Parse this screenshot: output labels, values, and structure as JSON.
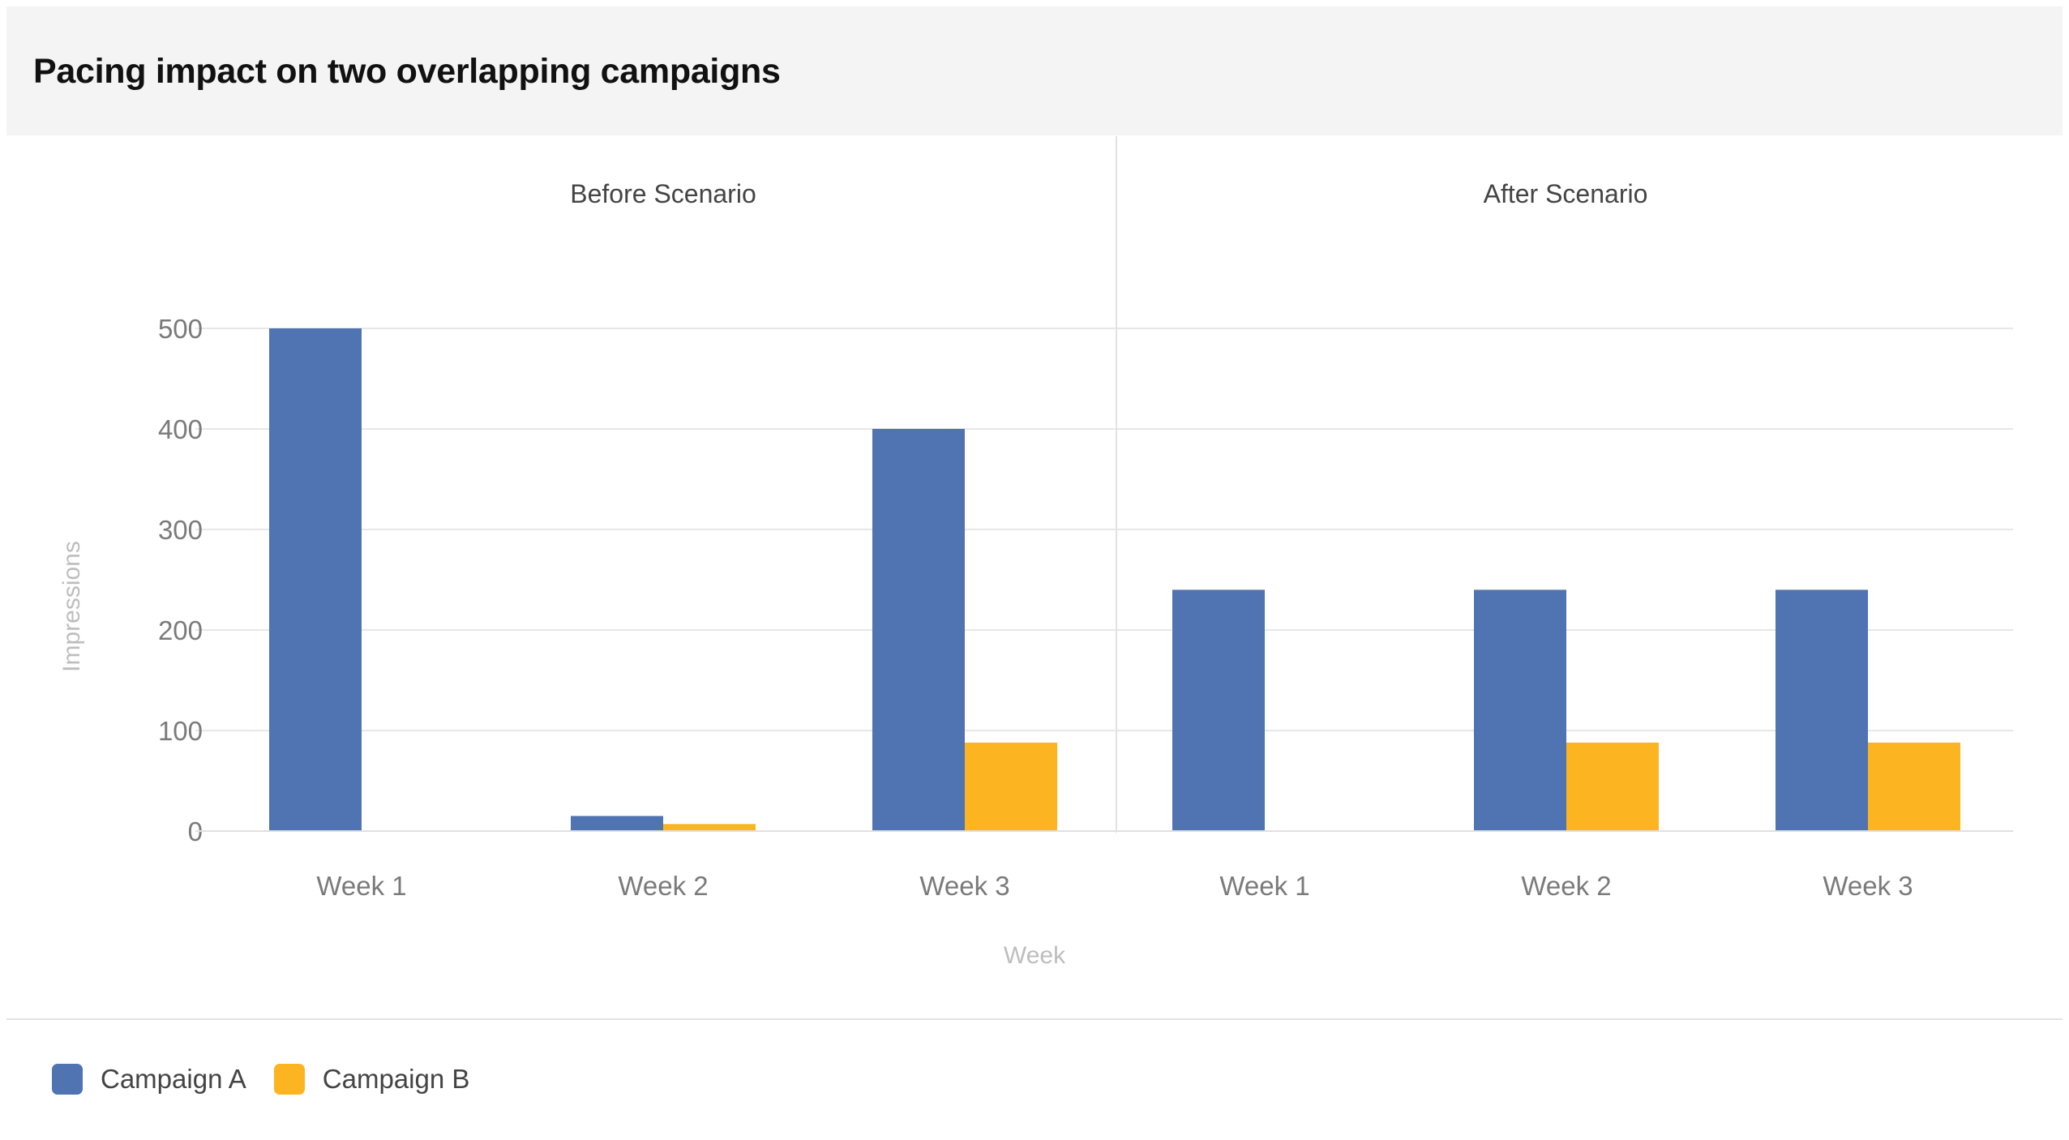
{
  "title": "Pacing impact on two overlapping campaigns",
  "chart_data": {
    "type": "bar",
    "title": "Pacing impact on two overlapping campaigns",
    "xlabel": "Week",
    "ylabel": "Impressions",
    "ylim": [
      0,
      500
    ],
    "yticks": [
      0,
      100,
      200,
      300,
      400,
      500
    ],
    "grid": true,
    "legend_position": "bottom-left",
    "panels": [
      {
        "name": "Before Scenario",
        "categories": [
          "Week 1",
          "Week 2",
          "Week 3"
        ],
        "series": [
          {
            "name": "Campaign A",
            "color": "#5073b1",
            "values": [
              500,
              15,
              400
            ]
          },
          {
            "name": "Campaign B",
            "color": "#fcb520",
            "values": [
              0,
              7,
              88
            ]
          }
        ]
      },
      {
        "name": "After Scenario",
        "categories": [
          "Week 1",
          "Week 2",
          "Week 3"
        ],
        "series": [
          {
            "name": "Campaign A",
            "color": "#5073b1",
            "values": [
              240,
              240,
              240
            ]
          },
          {
            "name": "Campaign B",
            "color": "#fcb520",
            "values": [
              0,
              88,
              88
            ]
          }
        ]
      }
    ]
  },
  "legend": [
    {
      "label": "Campaign A",
      "color": "#5073b1"
    },
    {
      "label": "Campaign B",
      "color": "#fcb520"
    }
  ]
}
